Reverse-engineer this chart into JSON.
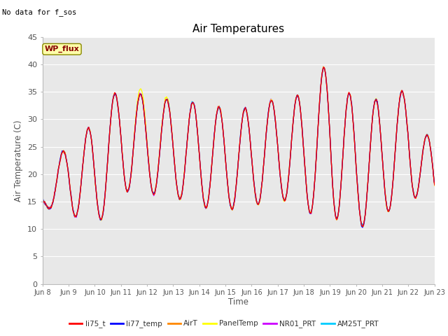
{
  "title": "Air Temperatures",
  "ylabel": "Air Temperature (C)",
  "xlabel": "Time",
  "note": "No data for f_sos",
  "wp_flux_label": "WP_flux",
  "ylim": [
    0,
    45
  ],
  "yticks": [
    0,
    5,
    10,
    15,
    20,
    25,
    30,
    35,
    40,
    45
  ],
  "series_colors": {
    "li75_t": "#ff0000",
    "li77_temp": "#0000ff",
    "AirT": "#ff8800",
    "PanelTemp": "#ffff00",
    "NR01_PRT": "#cc00ff",
    "AM25T_PRT": "#00ccff"
  },
  "series_order": [
    "AM25T_PRT",
    "NR01_PRT",
    "PanelTemp",
    "AirT",
    "li77_temp",
    "li75_t"
  ],
  "legend_order": [
    "li75_t",
    "li77_temp",
    "AirT",
    "PanelTemp",
    "NR01_PRT",
    "AM25T_PRT"
  ],
  "background_color": "#e8e8e8",
  "figure_background": "#ffffff",
  "tick_label_color": "#555555",
  "title_color": "#000000",
  "note_color": "#000000",
  "grid_color": "#ffffff",
  "wp_flux_box_facecolor": "#ffffaa",
  "wp_flux_box_edgecolor": "#888800",
  "wp_flux_text_color": "#880000",
  "x_tick_labels": [
    "Jun 8",
    "Jun 9",
    "Jun 10",
    "Jun 11",
    "Jun 12",
    "Jun 13",
    "Jun 14",
    "Jun 15",
    "Jun 16",
    "Jun 17",
    "Jun 18",
    "Jun 19",
    "Jun 20",
    "Jun 21",
    "Jun 22",
    "Jun 23"
  ],
  "day_mins": [
    14.0,
    13.0,
    10.0,
    17.0,
    16.5,
    16.0,
    14.0,
    13.5,
    14.0,
    16.0,
    13.0,
    12.5,
    10.0,
    12.0,
    17.0,
    12.0
  ],
  "day_maxs": [
    16.5,
    26.5,
    29.0,
    36.5,
    34.0,
    33.5,
    33.0,
    32.0,
    32.0,
    34.0,
    34.5,
    41.0,
    32.5,
    34.0,
    35.5,
    24.0
  ],
  "panel_day_maxs": [
    16.5,
    26.5,
    29.0,
    36.5,
    35.5,
    33.5,
    33.0,
    32.0,
    32.0,
    34.0,
    34.5,
    41.0,
    32.5,
    34.0,
    35.5,
    24.0
  ]
}
